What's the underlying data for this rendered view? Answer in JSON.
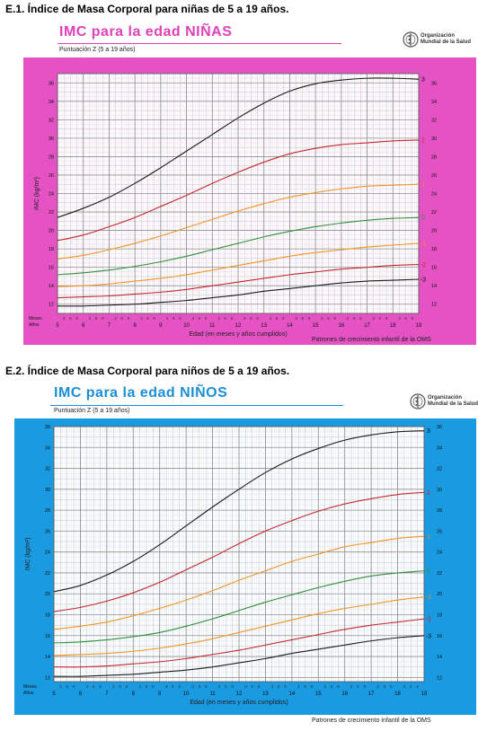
{
  "logo": {
    "icon": "who-emblem-icon",
    "line1": "Organización",
    "line2": "Mundial de la Salud"
  },
  "sections": [
    {
      "heading": "E.1. Índice de Masa Corporal para niñas de 5 a 19 años.",
      "big_title": "IMC para la edad  NIÑAS",
      "subtitle": "Puntuación Z (5 a 19 años)",
      "footer": "Patrones de crecimiento infantil de la OMS"
    },
    {
      "heading": "E.2. Índice de Masa Corporal para niños de 5 a 19 años.",
      "big_title": "IMC para la edad  NIÑOS",
      "subtitle": "Puntuación Z (5 a 19 años)",
      "footer": "Patrones de crecimiento infantil de la OMS"
    }
  ],
  "colors": {
    "girls_frame": "#e452c4",
    "girls_title": "#e040b8",
    "girls_grid_major": "#8f8f8f",
    "girls_grid_minor": "#eed0e8",
    "boys_frame": "#1a9ae0",
    "boys_title": "#1b8fd6",
    "boys_grid_major": "#8f8f8f",
    "boys_grid_minor": "#cfe3f3",
    "line_3": "#1a1a1a",
    "line_2": "#c4262e",
    "line_1": "#f39324",
    "line_0": "#2f8f3a",
    "line_m1": "#f39324",
    "line_m2": "#c4262e",
    "line_m3": "#1a1a1a"
  },
  "chart_data": [
    {
      "type": "line",
      "title": "IMC para la edad  NIÑAS",
      "subtitle": "Puntuación Z (5 a 19 años)",
      "xlabel": "Edad (en meses y años cumplidos)",
      "ylabel": "IMC (kg/m²)",
      "xlim": [
        5,
        19
      ],
      "ylim": [
        11,
        37
      ],
      "y_ticks": [
        12,
        14,
        16,
        18,
        20,
        22,
        24,
        26,
        28,
        30,
        32,
        34,
        36
      ],
      "x_year_ticks": [
        "5",
        "6",
        "7",
        "8",
        "9",
        "10",
        "11",
        "12",
        "13",
        "14",
        "15",
        "16",
        "17",
        "18",
        "19"
      ],
      "month_ticks": [
        "3",
        "6",
        "9"
      ],
      "row_labels": {
        "months": "Meses",
        "years": "Años"
      },
      "grid": true,
      "legend": "line-end labels on the right",
      "x": [
        5,
        6,
        7,
        8,
        9,
        10,
        11,
        12,
        13,
        14,
        15,
        16,
        17,
        18,
        19
      ],
      "series": [
        {
          "name": "3",
          "color_key": "line_3",
          "values": [
            21.4,
            22.4,
            23.6,
            25.1,
            26.8,
            28.6,
            30.4,
            32.2,
            33.8,
            35.1,
            35.9,
            36.3,
            36.5,
            36.5,
            36.4
          ]
        },
        {
          "name": "2",
          "color_key": "line_2",
          "values": [
            18.9,
            19.5,
            20.4,
            21.4,
            22.6,
            23.8,
            25.1,
            26.3,
            27.4,
            28.3,
            28.9,
            29.3,
            29.5,
            29.7,
            29.8
          ]
        },
        {
          "name": "1",
          "color_key": "line_1",
          "values": [
            16.9,
            17.3,
            17.9,
            18.6,
            19.4,
            20.3,
            21.2,
            22.1,
            22.9,
            23.6,
            24.1,
            24.5,
            24.8,
            24.9,
            25.0
          ]
        },
        {
          "name": "0",
          "color_key": "line_0",
          "values": [
            15.2,
            15.4,
            15.7,
            16.1,
            16.6,
            17.2,
            17.9,
            18.6,
            19.3,
            19.9,
            20.4,
            20.8,
            21.1,
            21.3,
            21.4
          ]
        },
        {
          "name": "-1",
          "color_key": "line_m1",
          "values": [
            13.9,
            14.0,
            14.2,
            14.5,
            14.8,
            15.2,
            15.7,
            16.2,
            16.7,
            17.2,
            17.6,
            17.9,
            18.2,
            18.4,
            18.6
          ]
        },
        {
          "name": "-2",
          "color_key": "line_m2",
          "values": [
            12.7,
            12.8,
            12.9,
            13.1,
            13.3,
            13.6,
            14.0,
            14.4,
            14.8,
            15.2,
            15.5,
            15.8,
            16.0,
            16.2,
            16.3
          ]
        },
        {
          "name": "-3",
          "color_key": "line_m3",
          "values": [
            11.8,
            11.8,
            11.9,
            12.0,
            12.2,
            12.4,
            12.7,
            13.0,
            13.4,
            13.7,
            14.0,
            14.3,
            14.5,
            14.6,
            14.7
          ]
        }
      ]
    },
    {
      "type": "line",
      "title": "IMC para la edad  NIÑOS",
      "subtitle": "Puntuación Z (5 a 19 años)",
      "xlabel": "Edad (en meses y años cumplidos)",
      "ylabel": "IMC (kg/m²)",
      "xlim": [
        5,
        19
      ],
      "ylim": [
        11.6,
        36
      ],
      "y_ticks": [
        12,
        14,
        16,
        18,
        20,
        22,
        24,
        26,
        28,
        30,
        32,
        34,
        36
      ],
      "x_year_ticks": [
        "5",
        "6",
        "7",
        "8",
        "9",
        "10",
        "11",
        "12",
        "13",
        "14",
        "15",
        "16",
        "17",
        "18",
        "19"
      ],
      "month_ticks": [
        "3",
        "6",
        "9"
      ],
      "row_labels": {
        "months": "Meses",
        "years": "Años"
      },
      "grid": true,
      "legend": "line-end labels on the right",
      "x": [
        5,
        6,
        7,
        8,
        9,
        10,
        11,
        12,
        13,
        14,
        15,
        16,
        17,
        18,
        19
      ],
      "series": [
        {
          "name": "3",
          "color_key": "line_3",
          "values": [
            20.2,
            20.8,
            21.8,
            23.1,
            24.7,
            26.5,
            28.3,
            30.0,
            31.6,
            32.9,
            33.9,
            34.7,
            35.2,
            35.5,
            35.6
          ]
        },
        {
          "name": "2",
          "color_key": "line_2",
          "values": [
            18.3,
            18.7,
            19.3,
            20.1,
            21.1,
            22.3,
            23.5,
            24.8,
            26.0,
            27.0,
            27.9,
            28.6,
            29.1,
            29.5,
            29.7
          ]
        },
        {
          "name": "1",
          "color_key": "line_1",
          "values": [
            16.6,
            16.9,
            17.3,
            17.9,
            18.6,
            19.4,
            20.3,
            21.3,
            22.2,
            23.1,
            23.8,
            24.5,
            24.9,
            25.3,
            25.5
          ]
        },
        {
          "name": "0",
          "color_key": "line_0",
          "values": [
            15.3,
            15.4,
            15.6,
            15.9,
            16.3,
            16.9,
            17.6,
            18.4,
            19.2,
            19.9,
            20.6,
            21.2,
            21.7,
            22.0,
            22.2
          ]
        },
        {
          "name": "-1",
          "color_key": "line_m1",
          "values": [
            14.1,
            14.2,
            14.3,
            14.5,
            14.8,
            15.2,
            15.7,
            16.3,
            16.9,
            17.5,
            18.1,
            18.6,
            19.0,
            19.4,
            19.7
          ]
        },
        {
          "name": "-2",
          "color_key": "line_m2",
          "values": [
            13.0,
            13.0,
            13.1,
            13.3,
            13.5,
            13.8,
            14.2,
            14.6,
            15.1,
            15.6,
            16.1,
            16.6,
            17.0,
            17.3,
            17.6
          ]
        },
        {
          "name": "-3",
          "color_key": "line_m3",
          "values": [
            12.1,
            12.1,
            12.2,
            12.3,
            12.5,
            12.7,
            13.0,
            13.4,
            13.8,
            14.3,
            14.7,
            15.1,
            15.5,
            15.8,
            16.0
          ]
        }
      ]
    }
  ]
}
